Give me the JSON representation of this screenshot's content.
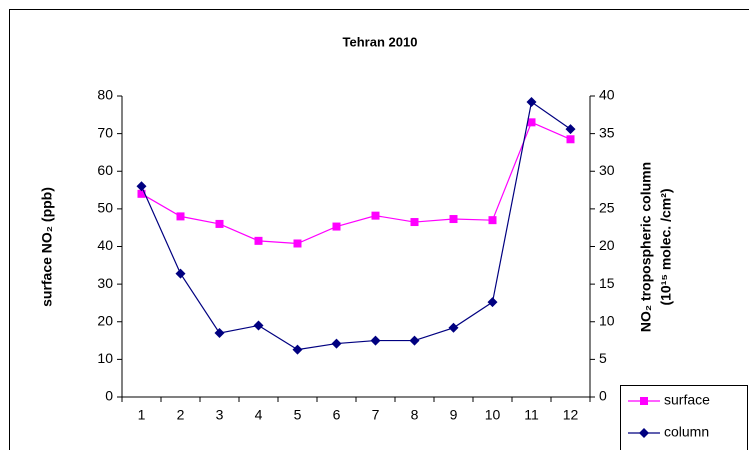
{
  "chart_data": {
    "type": "line",
    "title": "Tehran 2010",
    "ylabel": "surface NO₂ (ppb)",
    "y2label": [
      "NO₂ tropospheric column",
      "(10¹⁵ molec. /cm²)"
    ],
    "categories": [
      "1",
      "2",
      "3",
      "4",
      "5",
      "6",
      "7",
      "8",
      "9",
      "10",
      "11",
      "12"
    ],
    "series": [
      {
        "name": "surface",
        "color": "#ff00ff",
        "marker": "square",
        "values": [
          54,
          48,
          46,
          41.5,
          40.8,
          45.3,
          48.2,
          46.5,
          47.3,
          47,
          73,
          68.5
        ]
      },
      {
        "name": "column",
        "color": "#000080",
        "marker": "diamond",
        "axis": "y2",
        "values": [
          28,
          16.4,
          8.5,
          9.5,
          6.3,
          7.1,
          7.5,
          7.5,
          9.2,
          12.6,
          39.2,
          35.6
        ]
      }
    ],
    "ylim": [
      0,
      80
    ],
    "yticks": [
      0,
      10,
      20,
      30,
      40,
      50,
      60,
      70,
      80
    ],
    "y2lim": [
      0,
      40
    ],
    "y2ticks": [
      0,
      5,
      10,
      15,
      20,
      25,
      30,
      35,
      40
    ],
    "legend": "lower right"
  }
}
